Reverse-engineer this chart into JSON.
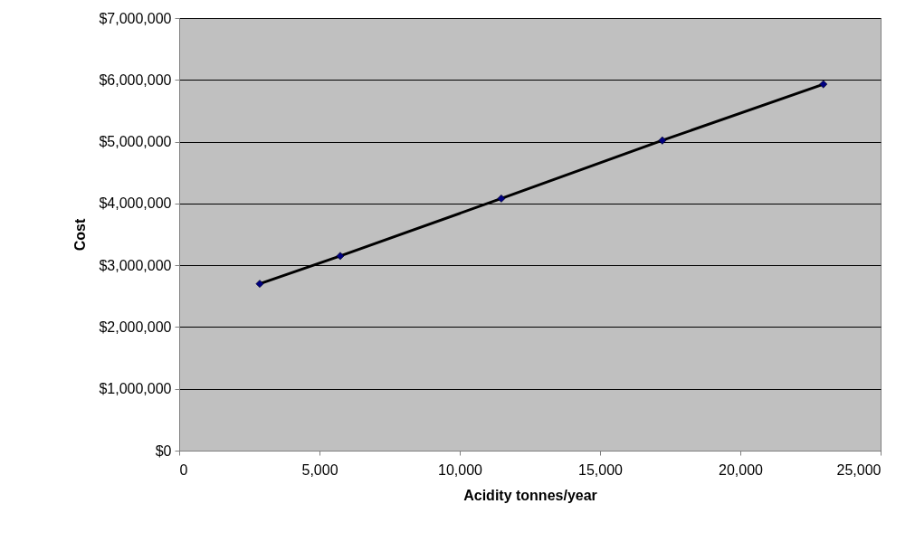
{
  "chart_data": {
    "type": "line",
    "xlabel": "Acidity tonnes/year",
    "ylabel": "Cost",
    "x": [
      2870,
      5740,
      11480,
      17220,
      22960
    ],
    "series": [
      {
        "color": "#000000",
        "colors": [
          "#000080",
          "#000080",
          "#000080",
          "#000080",
          "#000080"
        ],
        "values": [
          2700000,
          3150000,
          4080000,
          5020000,
          5930000
        ]
      }
    ],
    "xlim": [
      0,
      25000
    ],
    "xticks": [
      0,
      {
        "value": 5000,
        "label": "5,000"
      },
      {
        "value": 10000,
        "label": "10,000"
      },
      {
        "value": 15000,
        "label": "15,000"
      },
      {
        "value": 20000,
        "label": "20,000"
      },
      {
        "value": 25000,
        "label": "25,000"
      }
    ],
    "ylim": [
      0,
      7000000
    ],
    "yticks": [
      {
        "value": 0,
        "label": "$0"
      },
      {
        "value": 1000000,
        "label": "$1,000,000"
      },
      {
        "value": 2000000,
        "label": "$2,000,000"
      },
      {
        "value": 3000000,
        "label": "$3,000,000"
      },
      {
        "value": 4000000,
        "label": "$4,000,000"
      },
      {
        "value": 5000000,
        "label": "$5,000,000"
      },
      {
        "value": 6000000,
        "label": "$6,000,000"
      },
      {
        "value": 7000000,
        "label": "$7,000,000"
      }
    ],
    "grid": "y",
    "marker": "diamond",
    "line_style": "solid"
  }
}
